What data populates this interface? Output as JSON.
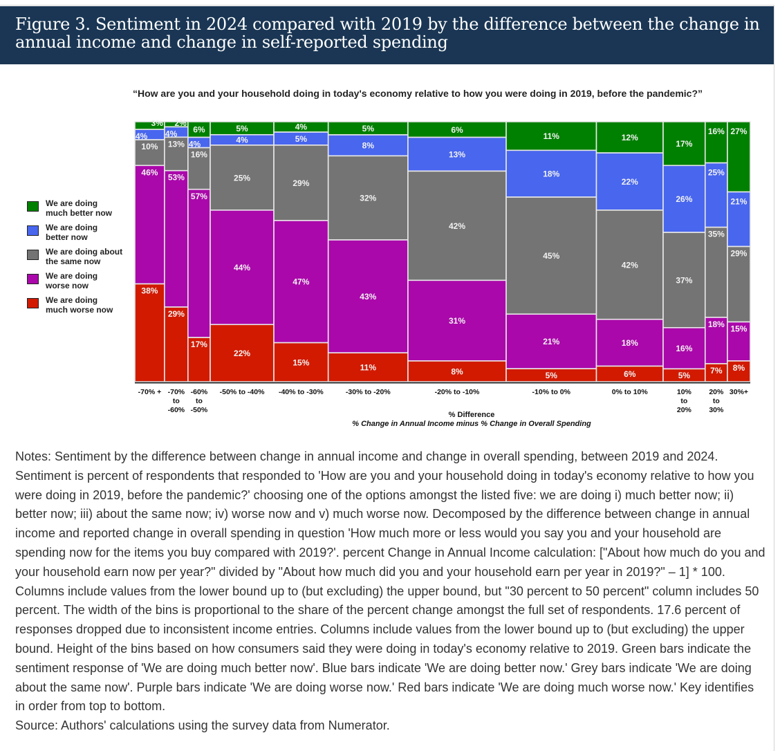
{
  "figure": {
    "title": "Figure 3. Sentiment in 2024 compared with 2019 by the difference between the change in annual income and change in self-reported spending"
  },
  "chart_data": {
    "type": "bar",
    "subtype": "mekko (variable-width 100% stacked bar)",
    "title": "“How are you and your household doing in today's economy relative to how you were doing in 2019, before the pandemic?”",
    "xlabel": "% Difference",
    "xlabel_sub": "% Change in Annual Income minus % Change in Overall Spending",
    "ylabel": "",
    "ylim": [
      0,
      100
    ],
    "grid": false,
    "legend_position": "left",
    "categories": [
      [
        "-70% +"
      ],
      [
        "-70%",
        "to",
        "-60%"
      ],
      [
        "-60%",
        "to",
        "-50%"
      ],
      [
        "-50% to -40%"
      ],
      [
        "-40% to -30%"
      ],
      [
        "-30% to -20%"
      ],
      [
        "-20% to -10%"
      ],
      [
        "-10% to 0%"
      ],
      [
        "0% to 10%"
      ],
      [
        "10%",
        "to",
        "20%"
      ],
      [
        "20%",
        "to",
        "30%"
      ],
      [
        "30%+"
      ]
    ],
    "column_width_share_pct": [
      4.8,
      3.8,
      3.6,
      10.3,
      8.8,
      12.9,
      15.9,
      14.6,
      10.8,
      6.8,
      3.6,
      3.7
    ],
    "series": [
      {
        "name": "We are doing much better now",
        "color": "#008000",
        "values": [
          3,
          2,
          6,
          5,
          4,
          5,
          6,
          11,
          12,
          17,
          16,
          27
        ]
      },
      {
        "name": "We are doing better now",
        "color": "#4866ee",
        "values": [
          4,
          4,
          4,
          4,
          5,
          8,
          13,
          18,
          22,
          26,
          25,
          21
        ]
      },
      {
        "name": "We are doing about the same now",
        "color": "#747474",
        "values": [
          10,
          13,
          16,
          25,
          29,
          32,
          42,
          45,
          42,
          37,
          35,
          29
        ]
      },
      {
        "name": "We are doing worse now",
        "color": "#aa08aa",
        "values": [
          46,
          53,
          57,
          44,
          47,
          43,
          31,
          21,
          18,
          16,
          18,
          15
        ]
      },
      {
        "name": "We are doing much worse now",
        "color": "#d11a00",
        "values": [
          38,
          29,
          17,
          22,
          15,
          11,
          8,
          5,
          6,
          5,
          7,
          8
        ]
      }
    ]
  },
  "legend": [
    {
      "label_lines": [
        "We are doing",
        "much better now"
      ],
      "color": "#008000"
    },
    {
      "label_lines": [
        "We are doing",
        "better now"
      ],
      "color": "#4866ee"
    },
    {
      "label_lines": [
        "We are doing about",
        "the same now"
      ],
      "color": "#747474"
    },
    {
      "label_lines": [
        "We are doing",
        "worse now"
      ],
      "color": "#aa08aa"
    },
    {
      "label_lines": [
        "We are doing",
        "much worse now"
      ],
      "color": "#d11a00"
    }
  ],
  "notes": {
    "text": "Notes: Sentiment by the difference between change in annual income and change in overall spending, between 2019 and 2024. Sentiment is percent of respondents that responded to 'How are you and your household doing in today's economy relative to how you were doing in 2019, before the pandemic?' choosing one of the options amongst the listed five: we are doing i) much better now; ii) better now; iii) about the same now; iv) worse now and v) much worse now. Decomposed by the difference between change in annual income and reported change in overall spending in question 'How much more or less would you say you and your household are spending now for the items you buy compared with 2019?'. percent Change in Annual Income calculation: [\"About how much do you and your household earn now per year?\" divided by \"About how much did you and your household earn per year in 2019?\" – 1] * 100. Columns include values from the lower bound up to (but excluding) the upper bound, but \"30 percent to 50 percent\" column includes 50 percent. The width of the bins is proportional to the share of the percent change amongst the full set of respondents. 17.6 percent of responses dropped due to inconsistent income entries. Columns include values from the lower bound up to (but excluding) the upper bound. Height of the bins based on how consumers said they were doing in today's economy relative to 2019. Green bars indicate the sentiment response of 'We are doing much better now'. Blue bars indicate 'We are doing better now.' Grey bars indicate 'We are doing about the same now'. Purple bars indicate 'We are doing worse now.' Red bars indicate 'We are doing much worse now.' Key identifies in order from top to bottom.",
    "source": "Source: Authors' calculations using the survey data from Numerator."
  }
}
